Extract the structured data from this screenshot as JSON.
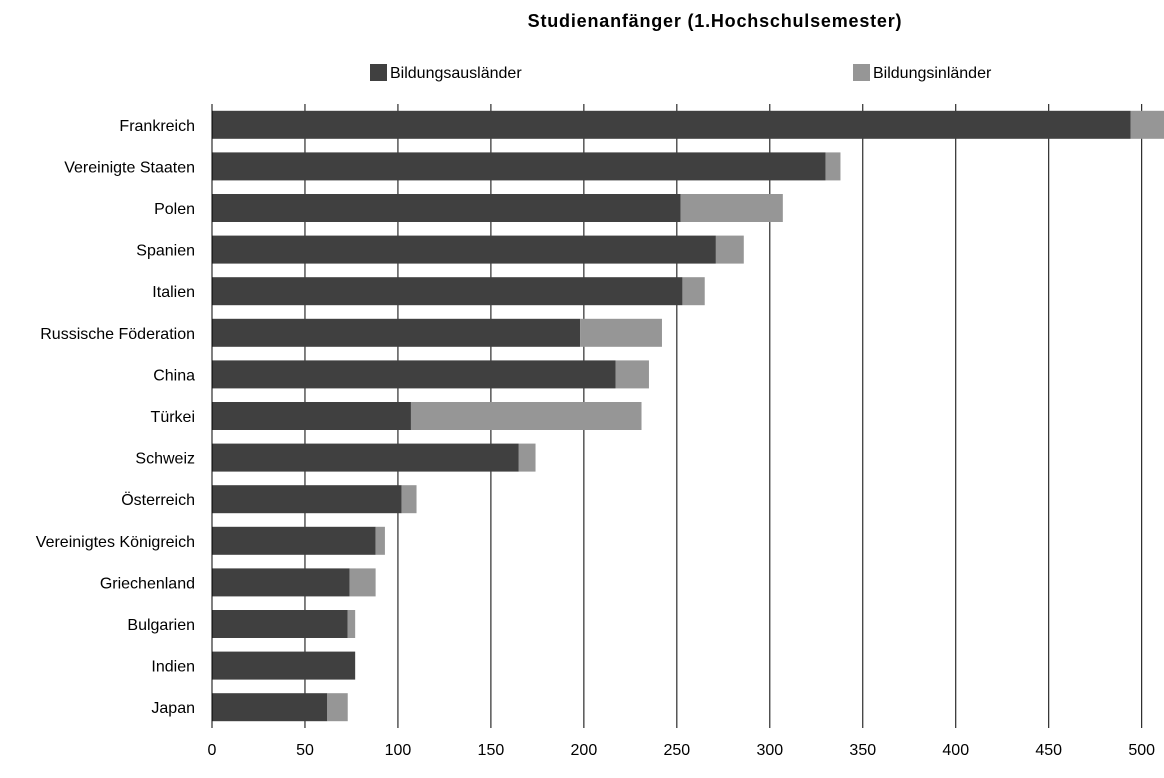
{
  "chart_data": {
    "type": "bar",
    "orientation": "horizontal",
    "stacked": true,
    "title": "Studienanfänger (1.Hochschulsemester)",
    "xlabel": "",
    "ylabel": "",
    "xlim": [
      0,
      512
    ],
    "x_ticks": [
      0,
      50,
      100,
      150,
      200,
      250,
      300,
      350,
      400,
      450,
      500
    ],
    "grid": "vertical",
    "legend_position": "top",
    "categories": [
      "Frankreich",
      "Vereinigte Staaten",
      "Polen",
      "Spanien",
      "Italien",
      "Russische Föderation",
      "China",
      "Türkei",
      "Schweiz",
      "Österreich",
      "Vereinigtes Königreich",
      "Griechenland",
      "Bulgarien",
      "Indien",
      "Japan"
    ],
    "series": [
      {
        "name": "Bildungsausländer",
        "color": "#404040",
        "values": [
          494,
          330,
          252,
          271,
          253,
          198,
          217,
          107,
          165,
          102,
          88,
          74,
          73,
          77,
          62
        ]
      },
      {
        "name": "Bildungsinländer",
        "color": "#969696",
        "values": [
          20,
          8,
          55,
          15,
          12,
          44,
          18,
          124,
          9,
          8,
          5,
          14,
          4,
          0,
          11
        ]
      }
    ]
  }
}
